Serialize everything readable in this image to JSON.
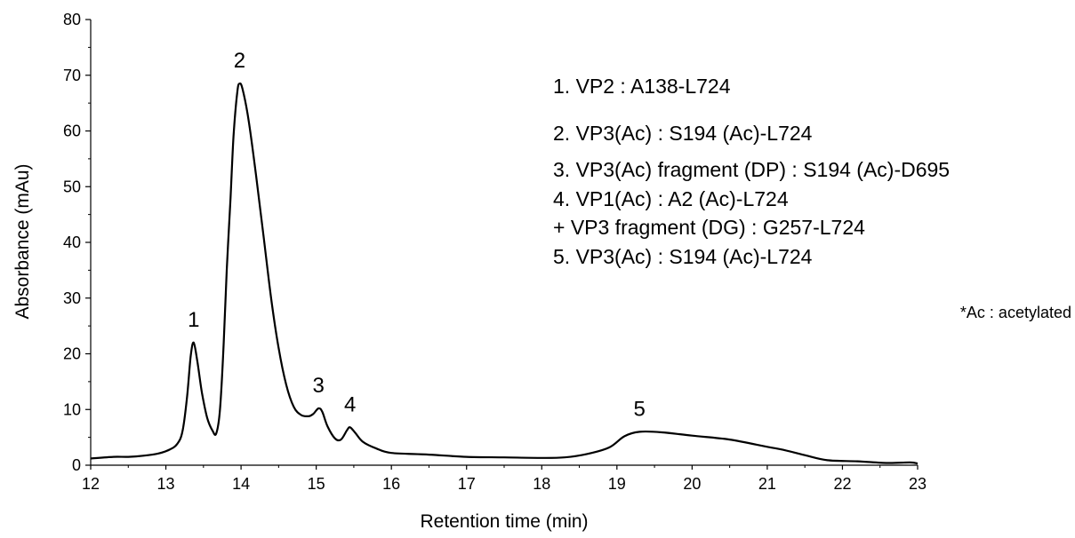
{
  "chart_data": {
    "type": "line",
    "title": "",
    "xlabel": "Retention time (min)",
    "ylabel": "Absorbance (mAu)",
    "xlim": [
      12,
      23
    ],
    "ylim": [
      0,
      80
    ],
    "x_ticks": [
      "12",
      "13",
      "14",
      "15",
      "16",
      "17",
      "18",
      "19",
      "20",
      "21",
      "22",
      "23"
    ],
    "y_ticks": [
      "0",
      "10",
      "20",
      "30",
      "40",
      "50",
      "60",
      "70",
      "80"
    ],
    "grid": false,
    "series": [
      {
        "color": "#000000",
        "points": [
          [
            12.0,
            1.2
          ],
          [
            12.3,
            1.5
          ],
          [
            12.5,
            1.5
          ],
          [
            12.7,
            1.7
          ],
          [
            12.9,
            2.1
          ],
          [
            13.05,
            2.8
          ],
          [
            13.15,
            3.8
          ],
          [
            13.22,
            6.0
          ],
          [
            13.28,
            12.0
          ],
          [
            13.33,
            19.5
          ],
          [
            13.37,
            22.0
          ],
          [
            13.42,
            18.5
          ],
          [
            13.48,
            13.0
          ],
          [
            13.55,
            8.5
          ],
          [
            13.62,
            6.2
          ],
          [
            13.67,
            5.7
          ],
          [
            13.72,
            10.0
          ],
          [
            13.77,
            22.0
          ],
          [
            13.81,
            35.0
          ],
          [
            13.86,
            48.0
          ],
          [
            13.9,
            59.0
          ],
          [
            13.95,
            67.0
          ],
          [
            13.98,
            68.5
          ],
          [
            14.02,
            67.5
          ],
          [
            14.1,
            62.0
          ],
          [
            14.2,
            52.0
          ],
          [
            14.3,
            41.0
          ],
          [
            14.4,
            30.0
          ],
          [
            14.5,
            21.0
          ],
          [
            14.6,
            14.5
          ],
          [
            14.7,
            10.5
          ],
          [
            14.8,
            9.0
          ],
          [
            14.9,
            8.8
          ],
          [
            14.96,
            9.2
          ],
          [
            15.03,
            10.2
          ],
          [
            15.08,
            9.6
          ],
          [
            15.15,
            7.0
          ],
          [
            15.25,
            4.8
          ],
          [
            15.33,
            4.6
          ],
          [
            15.41,
            6.3
          ],
          [
            15.45,
            6.8
          ],
          [
            15.52,
            5.8
          ],
          [
            15.62,
            4.2
          ],
          [
            15.8,
            3.0
          ],
          [
            16.0,
            2.2
          ],
          [
            16.5,
            1.9
          ],
          [
            17.0,
            1.5
          ],
          [
            17.5,
            1.4
          ],
          [
            18.0,
            1.3
          ],
          [
            18.3,
            1.4
          ],
          [
            18.6,
            2.0
          ],
          [
            18.9,
            3.2
          ],
          [
            19.1,
            5.2
          ],
          [
            19.3,
            6.0
          ],
          [
            19.6,
            5.9
          ],
          [
            20.0,
            5.3
          ],
          [
            20.5,
            4.6
          ],
          [
            21.0,
            3.3
          ],
          [
            21.2,
            2.8
          ],
          [
            21.5,
            1.8
          ],
          [
            21.8,
            0.9
          ],
          [
            22.2,
            0.7
          ],
          [
            22.6,
            0.4
          ],
          [
            22.9,
            0.5
          ],
          [
            23.0,
            0.3
          ]
        ]
      }
    ],
    "peak_labels": [
      {
        "label": "1",
        "x": 13.37,
        "y": 22.0
      },
      {
        "label": "2",
        "x": 13.98,
        "y": 68.5
      },
      {
        "label": "3",
        "x": 15.03,
        "y": 10.2
      },
      {
        "label": "4",
        "x": 15.45,
        "y": 6.8
      },
      {
        "label": "5",
        "x": 19.3,
        "y": 6.0
      }
    ],
    "legend": {
      "placement": "top-right",
      "lines": [
        "1.  VP2 : A138-L724",
        "2.  VP3(Ac) : S194 (Ac)-L724",
        "3.  VP3(Ac) fragment (DP) : S194 (Ac)-D695",
        "4.  VP1(Ac) : A2 (Ac)-L724",
        "     + VP3 fragment (DG) : G257-L724",
        "5.  VP3(Ac) : S194 (Ac)-L724"
      ]
    },
    "footnote": "*Ac : acetylated"
  }
}
